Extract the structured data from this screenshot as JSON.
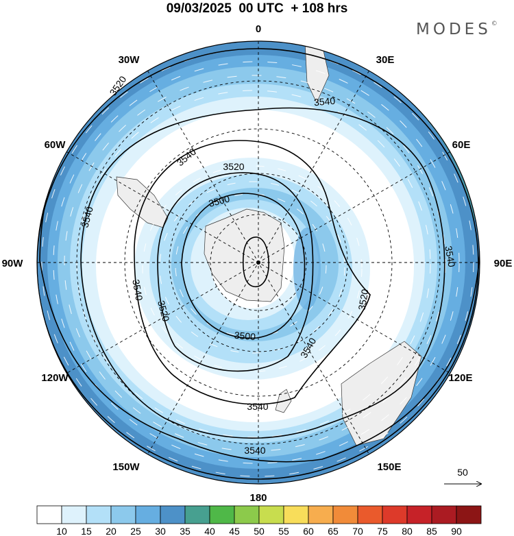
{
  "header": {
    "title": "09/03/2025  00 UTC  + 108 hrs",
    "brand": "MODES",
    "brand_mark": "©"
  },
  "map": {
    "projection": "south-polar-stereographic",
    "longitude_labels": [
      "0",
      "30E",
      "60E",
      "90E",
      "120E",
      "150E",
      "180",
      "150W",
      "120W",
      "90W",
      "60W",
      "30W"
    ],
    "contour_labels": [
      "3520",
      "3540",
      "3540",
      "3520",
      "3500",
      "3540",
      "3540",
      "3520",
      "3540",
      "3500",
      "3520",
      "3540",
      "3540",
      "3540"
    ],
    "land_color": "#eeeeee",
    "contour_color": "#000000"
  },
  "vector_reference": {
    "label": "50"
  },
  "colorbar": {
    "colors": [
      "#ffffff",
      "#def2fc",
      "#b3e0f8",
      "#8cc9ec",
      "#66aee1",
      "#4d91c8",
      "#47a090",
      "#4fb848",
      "#8cca4b",
      "#c8dd4e",
      "#f8dd5a",
      "#f7ad4e",
      "#f18b39",
      "#ea5a2c",
      "#dd3a2a",
      "#c62228",
      "#ab1b22",
      "#8c1515"
    ],
    "labels": [
      "10",
      "15",
      "20",
      "25",
      "30",
      "35",
      "40",
      "45",
      "50",
      "55",
      "60",
      "65",
      "70",
      "75",
      "80",
      "85",
      "90"
    ]
  }
}
